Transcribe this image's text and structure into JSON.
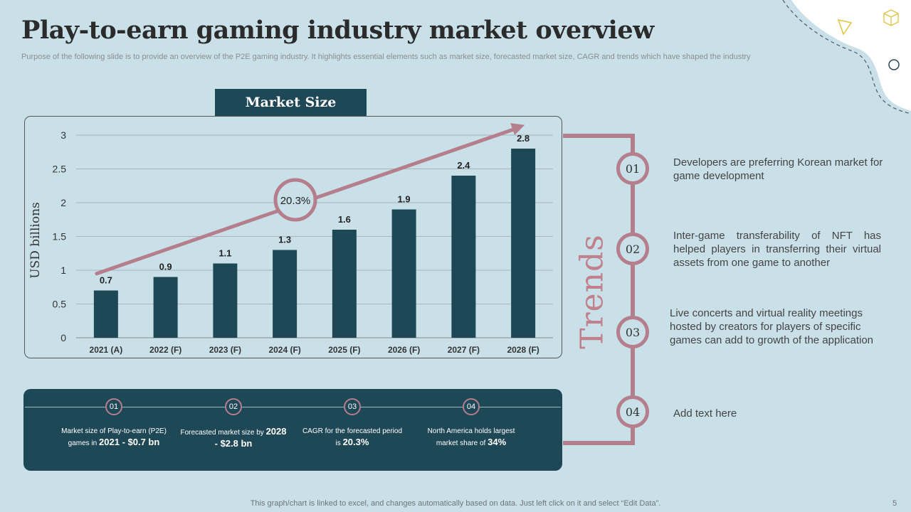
{
  "title": "Play-to-earn gaming industry market overview",
  "subtitle": "Purpose of the following slide is to provide an overview of the P2E gaming industry. It highlights essential elements such as market size, forecasted market size, CAGR and trends which have shaped the industry",
  "chart_header": "Market Size",
  "chart_data": {
    "type": "bar",
    "title": "Market Size",
    "categories": [
      "2021 (A)",
      "2022 (F)",
      "2023 (F)",
      "2024 (F)",
      "2025 (F)",
      "2026 (F)",
      "2027 (F)",
      "2028 (F)"
    ],
    "values": [
      0.7,
      0.9,
      1.1,
      1.3,
      1.6,
      1.9,
      2.4,
      2.8
    ],
    "value_labels": [
      "0.7",
      "0.9",
      "1.1",
      "1.3",
      "1.6",
      "1.9",
      "2.4",
      "2.8"
    ],
    "ylabel": "USD billions",
    "xlabel": "",
    "ylim": [
      0,
      3
    ],
    "yticks": [
      0,
      0.5,
      1,
      1.5,
      2,
      2.5,
      3
    ],
    "ytick_labels": [
      "0",
      "0.5",
      "1",
      "1.5",
      "2",
      "2.5",
      "3"
    ],
    "grid": true,
    "annotation": "20.3%",
    "bar_color": "#1f4857",
    "arrow_color": "#b47e8c"
  },
  "trends": {
    "heading": "Trends",
    "items": [
      {
        "num": "01",
        "text": "Developers are preferring Korean market for game development"
      },
      {
        "num": "02",
        "text": "Inter-game transferability of NFT has helped players in transferring their virtual assets from one game to another"
      },
      {
        "num": "03",
        "text": "Live concerts and virtual reality meetings hosted by creators for players of specific games can add to growth of the application"
      },
      {
        "num": "04",
        "text": "Add text here"
      }
    ]
  },
  "stats": [
    {
      "num": "01",
      "text": "Market size of Play-to-earn (P2E) games in",
      "highlight": "2021 - $0.7 bn"
    },
    {
      "num": "02",
      "text": "Forecasted market size by",
      "highlight": "2028 - $2.8 bn"
    },
    {
      "num": "03",
      "text": "CAGR for the forecasted period is",
      "highlight": "20.3%"
    },
    {
      "num": "04",
      "text": "North America holds largest market share of",
      "highlight": "34%"
    }
  ],
  "footer": "This graph/chart is linked to excel, and changes automatically based on data. Just left click on it and select “Edit Data”.",
  "page_number": "5",
  "colors": {
    "background": "#c9e0e8",
    "primary": "#1f4857",
    "accent": "#b47e8c"
  }
}
